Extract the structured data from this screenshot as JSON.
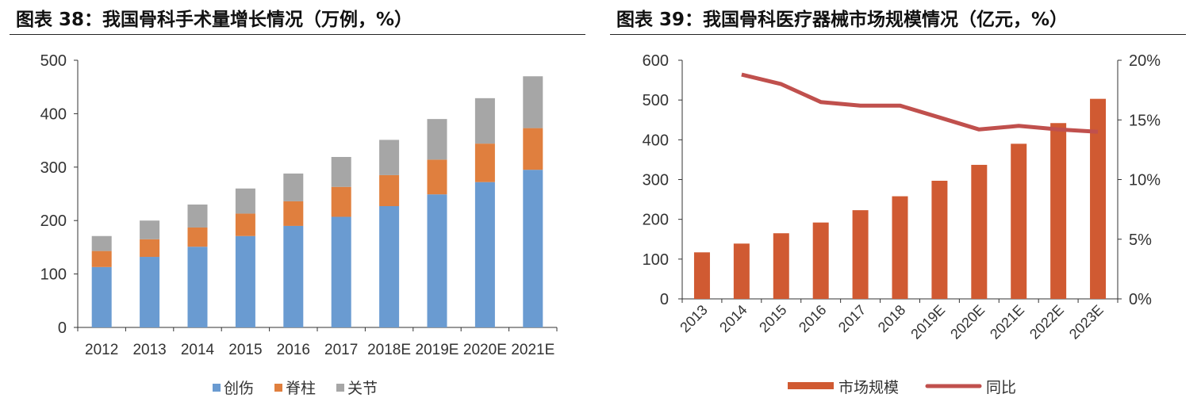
{
  "chart_data": [
    {
      "type": "bar",
      "stacked": true,
      "title": "图表 38：我国骨科手术量增长情况（万例，%）",
      "categories": [
        "2012",
        "2013",
        "2014",
        "2015",
        "2016",
        "2017",
        "2018E",
        "2019E",
        "2020E",
        "2021E"
      ],
      "series": [
        {
          "name": "创伤",
          "color": "#6a9bd1",
          "values": [
            113,
            132,
            151,
            171,
            190,
            207,
            227,
            249,
            272,
            295
          ]
        },
        {
          "name": "脊柱",
          "color": "#e07f3e",
          "values": [
            30,
            33,
            36,
            42,
            46,
            56,
            58,
            65,
            72,
            78
          ]
        },
        {
          "name": "关节",
          "color": "#a6a6a6",
          "values": [
            28,
            35,
            43,
            47,
            52,
            56,
            66,
            76,
            85,
            97
          ]
        }
      ],
      "ylim": [
        0,
        500
      ],
      "yticks": [
        0,
        100,
        200,
        300,
        400,
        500
      ],
      "legend": "bottom",
      "grid": false
    },
    {
      "type": "bar-line",
      "title": "图表 39：我国骨科医疗器械市场规模情况（亿元，%）",
      "categories": [
        "2013",
        "2014",
        "2015",
        "2016",
        "2017",
        "2018",
        "2019E",
        "2020E",
        "2021E",
        "2022E",
        "2023E"
      ],
      "bar_series": {
        "name": "市场规模",
        "color": "#d05a32",
        "values": [
          117,
          139,
          165,
          192,
          223,
          258,
          297,
          337,
          390,
          442,
          503
        ]
      },
      "line_series": {
        "name": "同比",
        "color": "#c0504d",
        "values": [
          null,
          18.8,
          18.0,
          16.5,
          16.2,
          16.2,
          15.2,
          14.2,
          14.5,
          14.2,
          14.0
        ]
      },
      "ylim_left": [
        0,
        600
      ],
      "yticks_left": [
        0,
        100,
        200,
        300,
        400,
        500,
        600
      ],
      "ylim_right": [
        0,
        20
      ],
      "yticks_right": [
        "0%",
        "5%",
        "10%",
        "15%",
        "20%"
      ],
      "legend": "bottom",
      "grid": false
    }
  ]
}
